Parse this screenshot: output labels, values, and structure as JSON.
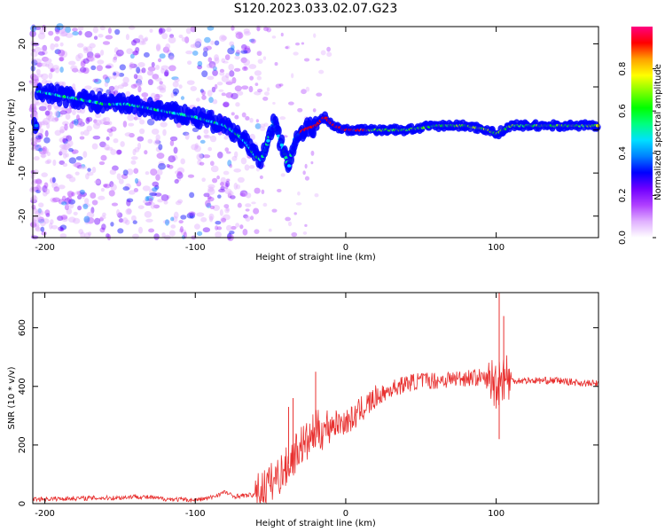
{
  "title": "S120.2023.033.02.07.G23",
  "chart_data": [
    {
      "type": "heatmap",
      "xlabel": "Height of straight line (km)",
      "ylabel": "Frequency (Hz)",
      "xlim": [
        -208,
        168
      ],
      "ylim": [
        -25,
        24
      ],
      "xticks": [
        -200,
        -100,
        0,
        100
      ],
      "yticks": [
        -20,
        -10,
        0,
        10,
        20
      ],
      "grid": false,
      "colorbar": {
        "label": "Normalized spectral amplitude",
        "range": [
          0,
          1
        ],
        "ticks": [
          0.0,
          0.2,
          0.4,
          0.6,
          0.8
        ],
        "colormap": [
          "#ffffff",
          "#e0b0ff",
          "#b040ff",
          "#7000ff",
          "#0000ff",
          "#0080ff",
          "#00e0ff",
          "#00ff80",
          "#00ff00",
          "#80ff00",
          "#ffff00",
          "#ffa000",
          "#ff0000",
          "#ff0080"
        ]
      },
      "ridge": [
        {
          "x": -205,
          "f": 9
        },
        {
          "x": -190,
          "f": 8
        },
        {
          "x": -175,
          "f": 7
        },
        {
          "x": -160,
          "f": 6
        },
        {
          "x": -145,
          "f": 6
        },
        {
          "x": -130,
          "f": 5
        },
        {
          "x": -115,
          "f": 4
        },
        {
          "x": -100,
          "f": 3
        },
        {
          "x": -90,
          "f": 2
        },
        {
          "x": -80,
          "f": 1
        },
        {
          "x": -72,
          "f": -1
        },
        {
          "x": -66,
          "f": -3
        },
        {
          "x": -60,
          "f": -6
        },
        {
          "x": -56,
          "f": -7
        },
        {
          "x": -52,
          "f": -3
        },
        {
          "x": -48,
          "f": 2
        },
        {
          "x": -44,
          "f": -2
        },
        {
          "x": -40,
          "f": -6
        },
        {
          "x": -38,
          "f": -9
        },
        {
          "x": -34,
          "f": -2
        },
        {
          "x": -28,
          "f": 0
        },
        {
          "x": -20,
          "f": 1
        },
        {
          "x": -14,
          "f": 3
        },
        {
          "x": -8,
          "f": 1
        },
        {
          "x": 0,
          "f": 0
        },
        {
          "x": 20,
          "f": 0
        },
        {
          "x": 40,
          "f": 0
        },
        {
          "x": 60,
          "f": 1
        },
        {
          "x": 80,
          "f": 1
        },
        {
          "x": 95,
          "f": 0
        },
        {
          "x": 100,
          "f": -1
        },
        {
          "x": 110,
          "f": 1
        },
        {
          "x": 130,
          "f": 1
        },
        {
          "x": 150,
          "f": 1
        },
        {
          "x": 168,
          "f": 1
        }
      ]
    },
    {
      "type": "line",
      "xlabel": "Height of straight line (km)",
      "ylabel": "SNR (10 * v/v)",
      "xlim": [
        -208,
        168
      ],
      "ylim": [
        0,
        720
      ],
      "xticks": [
        -200,
        -100,
        0,
        100
      ],
      "yticks": [
        0,
        200,
        400,
        600
      ],
      "grid": false,
      "color": "#e8302f",
      "series": [
        {
          "values": [
            {
              "x": -208,
              "y": 15
            },
            {
              "x": -180,
              "y": 18
            },
            {
              "x": -150,
              "y": 20
            },
            {
              "x": -140,
              "y": 25
            },
            {
              "x": -120,
              "y": 16
            },
            {
              "x": -100,
              "y": 12
            },
            {
              "x": -90,
              "y": 20
            },
            {
              "x": -80,
              "y": 40
            },
            {
              "x": -75,
              "y": 25
            },
            {
              "x": -60,
              "y": 30
            },
            {
              "x": -50,
              "y": 70
            },
            {
              "x": -40,
              "y": 120
            },
            {
              "x": -35,
              "y": 160
            },
            {
              "x": -30,
              "y": 200
            },
            {
              "x": -25,
              "y": 210
            },
            {
              "x": -20,
              "y": 250
            },
            {
              "x": -15,
              "y": 250
            },
            {
              "x": -10,
              "y": 270
            },
            {
              "x": 0,
              "y": 280
            },
            {
              "x": 5,
              "y": 290
            },
            {
              "x": 10,
              "y": 320
            },
            {
              "x": 20,
              "y": 360
            },
            {
              "x": 30,
              "y": 390
            },
            {
              "x": 40,
              "y": 410
            },
            {
              "x": 50,
              "y": 420
            },
            {
              "x": 60,
              "y": 420
            },
            {
              "x": 70,
              "y": 425
            },
            {
              "x": 80,
              "y": 430
            },
            {
              "x": 90,
              "y": 430
            },
            {
              "x": 95,
              "y": 420
            },
            {
              "x": 100,
              "y": 410
            },
            {
              "x": 105,
              "y": 440
            },
            {
              "x": 110,
              "y": 420
            },
            {
              "x": 120,
              "y": 420
            },
            {
              "x": 130,
              "y": 420
            },
            {
              "x": 140,
              "y": 420
            },
            {
              "x": 150,
              "y": 415
            },
            {
              "x": 160,
              "y": 410
            },
            {
              "x": 168,
              "y": 410
            }
          ]
        }
      ],
      "peaks": [
        {
          "x": -38,
          "y": 330
        },
        {
          "x": -35,
          "y": 360
        },
        {
          "x": -20,
          "y": 450
        },
        {
          "x": 102,
          "y": 720
        },
        {
          "x": 102,
          "y": 220
        },
        {
          "x": 105,
          "y": 640
        }
      ]
    }
  ]
}
